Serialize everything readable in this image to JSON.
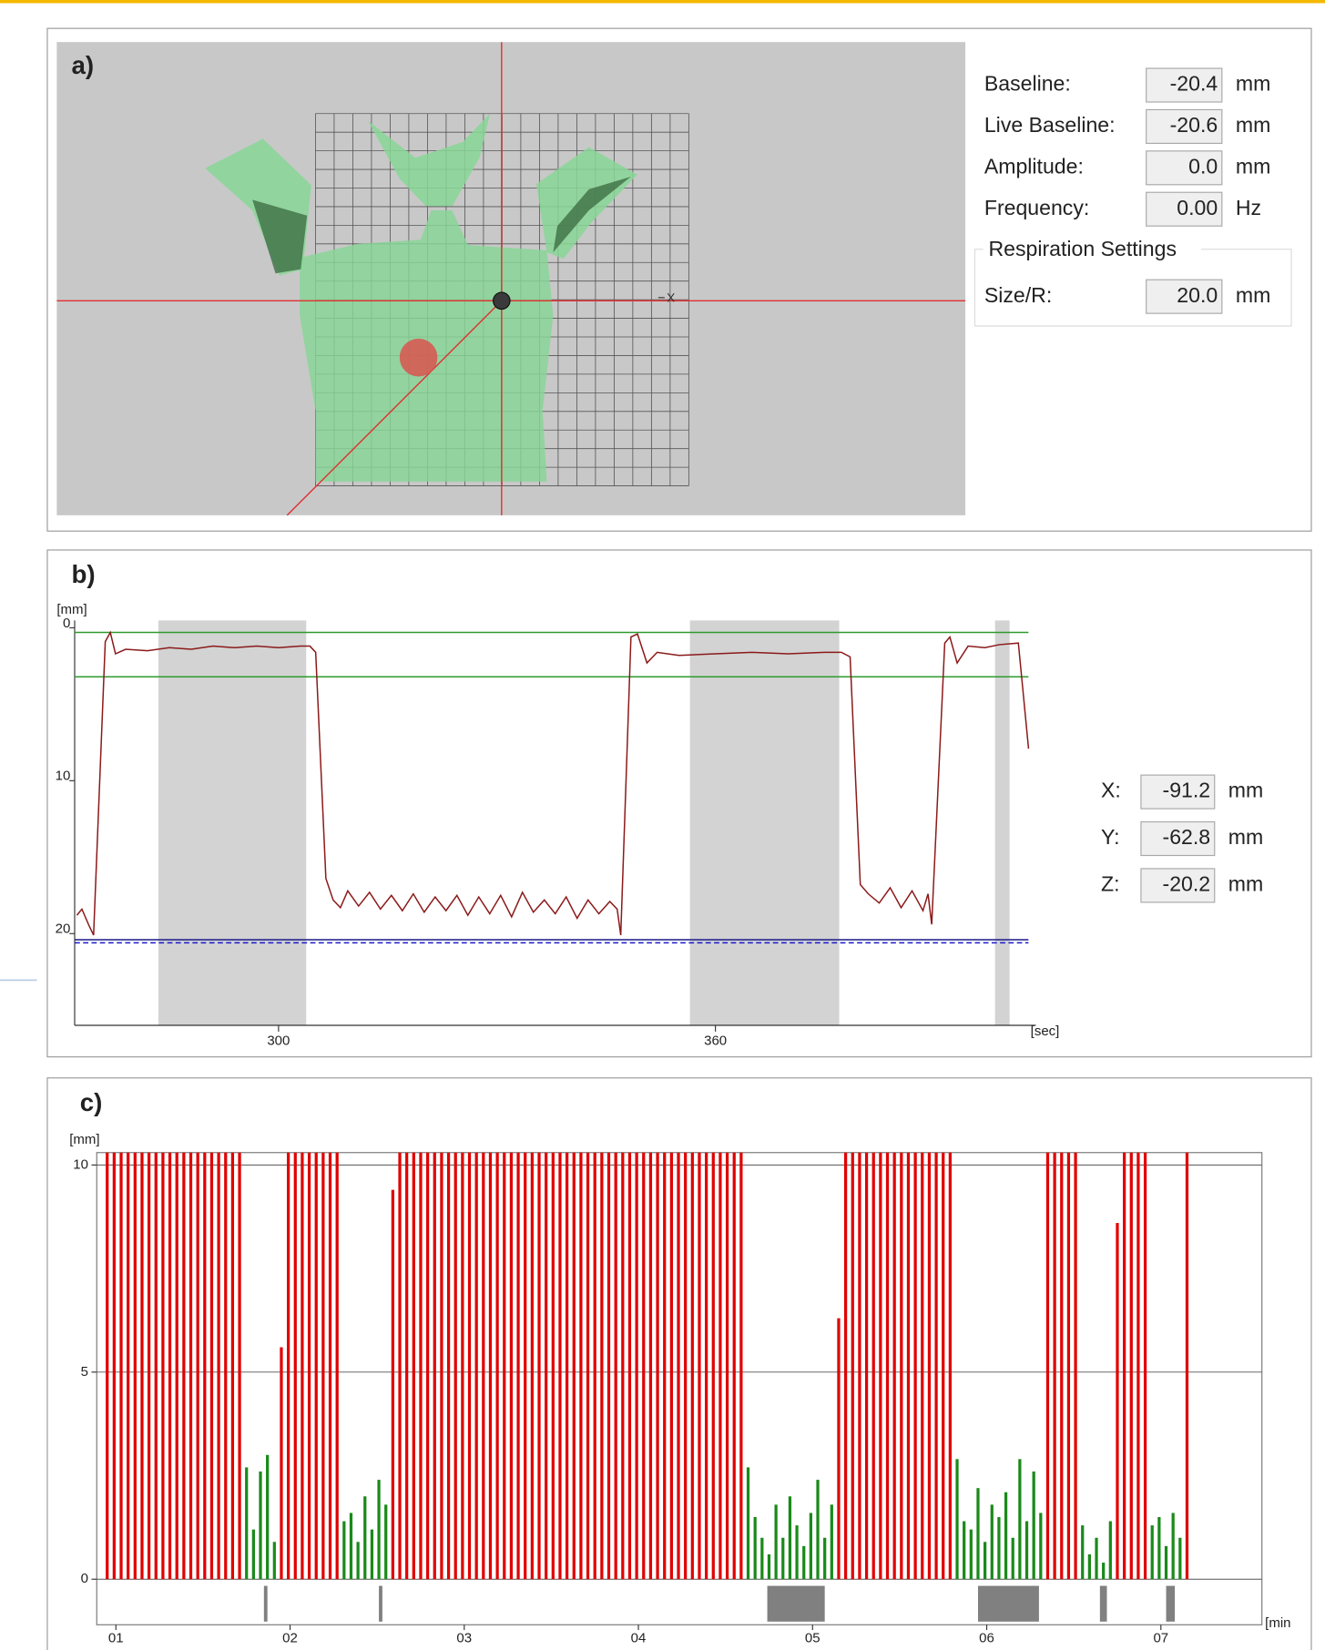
{
  "panel_a": {
    "label": "a)",
    "fields": [
      {
        "label": "Baseline:",
        "value": "-20.4",
        "unit": "mm"
      },
      {
        "label": "Live Baseline:",
        "value": "-20.6",
        "unit": "mm"
      },
      {
        "label": "Amplitude:",
        "value": "0.0",
        "unit": "mm"
      },
      {
        "label": "Frequency:",
        "value": "0.00",
        "unit": "Hz"
      }
    ],
    "group_title": "Respiration Settings",
    "group_fields": [
      {
        "label": "Size/R:",
        "value": "20.0",
        "unit": "mm"
      }
    ]
  },
  "panel_b": {
    "label": "b)",
    "chart": {
      "type": "line",
      "y_label": "[mm]",
      "x_label": "[sec]",
      "color": "#8b1a1a",
      "x": [
        272.3,
        273,
        274,
        274.6,
        276.2,
        276.9,
        277.6,
        279,
        282,
        285,
        288,
        291,
        294,
        297,
        300,
        303,
        304.3,
        305.1,
        306.5,
        307.5,
        308.5,
        309.5,
        311,
        312.5,
        314,
        315.5,
        317,
        318.5,
        320,
        321.5,
        323,
        324.5,
        326,
        327.5,
        329,
        330.5,
        332,
        333.5,
        335,
        336.5,
        338,
        339.5,
        341,
        342.5,
        344,
        345.5,
        346.5,
        347,
        348.4,
        349.3,
        350.6,
        352,
        355,
        360,
        365,
        370,
        375,
        377.3,
        378.5,
        379.9,
        381,
        382.5,
        384,
        385.5,
        387,
        388.5,
        389.2,
        389.7,
        391.5,
        392.2,
        393.2,
        394.7,
        397,
        399,
        401.6,
        403
      ],
      "values": [
        18.8,
        18.4,
        19.5,
        20.1,
        0.9,
        0.3,
        1.7,
        1.4,
        1.5,
        1.3,
        1.4,
        1.2,
        1.3,
        1.2,
        1.3,
        1.2,
        1.2,
        1.6,
        16.4,
        17.8,
        18.3,
        17.2,
        18.2,
        17.3,
        18.4,
        17.5,
        18.5,
        17.4,
        18.6,
        17.6,
        18.5,
        17.5,
        18.8,
        17.6,
        18.7,
        17.5,
        18.9,
        17.3,
        18.6,
        17.8,
        18.7,
        17.6,
        19.0,
        17.8,
        18.7,
        17.9,
        18.4,
        20.1,
        0.6,
        0.4,
        2.3,
        1.6,
        1.8,
        1.7,
        1.6,
        1.7,
        1.6,
        1.6,
        1.9,
        16.8,
        17.4,
        18.0,
        17.0,
        18.3,
        17.2,
        18.5,
        17.4,
        19.4,
        1.0,
        0.6,
        2.3,
        1.2,
        1.3,
        1.1,
        1.0,
        7.9
      ],
      "xlim": [
        272,
        404
      ],
      "ylim": [
        0,
        26
      ],
      "y_inverted": true,
      "xticks": [
        300,
        360
      ],
      "yticks": [
        0,
        10,
        20
      ],
      "gate_windows": [
        [
          283.5,
          303.8
        ],
        [
          356.5,
          377.0
        ],
        [
          398.4,
          400.4
        ]
      ],
      "gate_color": "#d3d3d3",
      "reference_lines": [
        {
          "value": 0.3,
          "color": "#2e9b2e",
          "style": "solid"
        },
        {
          "value": 3.2,
          "color": "#2e9b2e",
          "style": "solid"
        },
        {
          "value": 20.4,
          "color": "#1a1a8a",
          "style": "solid"
        },
        {
          "value": 20.6,
          "color": "#1a1acc",
          "style": "dashed"
        }
      ]
    },
    "fields": [
      {
        "label": "X:",
        "value": "-91.2",
        "unit": "mm"
      },
      {
        "label": "Y:",
        "value": "-62.8",
        "unit": "mm"
      },
      {
        "label": "Z:",
        "value": "-20.2",
        "unit": "mm"
      }
    ]
  },
  "panel_c": {
    "label": "c)",
    "chart": {
      "type": "bar",
      "y_label": "[mm]",
      "x_label": "[min",
      "x": [
        0.95,
        0.99,
        1.03,
        1.07,
        1.11,
        1.15,
        1.19,
        1.23,
        1.27,
        1.31,
        1.35,
        1.39,
        1.43,
        1.47,
        1.51,
        1.55,
        1.59,
        1.63,
        1.67,
        1.71,
        1.75,
        1.79,
        1.83,
        1.87,
        1.91,
        1.95,
        1.99,
        2.03,
        2.07,
        2.11,
        2.15,
        2.19,
        2.23,
        2.27,
        2.31,
        2.35,
        2.39,
        2.43,
        2.47,
        2.51,
        2.55,
        2.59,
        2.63,
        2.67,
        2.71,
        2.75,
        2.79,
        2.83,
        2.87,
        2.91,
        2.95,
        2.99,
        3.03,
        3.07,
        3.11,
        3.15,
        3.19,
        3.23,
        3.27,
        3.31,
        3.35,
        3.39,
        3.43,
        3.47,
        3.51,
        3.55,
        3.59,
        3.63,
        3.67,
        3.71,
        3.75,
        3.79,
        3.83,
        3.87,
        3.91,
        3.95,
        3.99,
        4.03,
        4.07,
        4.11,
        4.15,
        4.19,
        4.23,
        4.27,
        4.31,
        4.35,
        4.39,
        4.43,
        4.47,
        4.51,
        4.55,
        4.59,
        4.63,
        4.67,
        4.71,
        4.75,
        4.79,
        4.83,
        4.87,
        4.91,
        4.95,
        4.99,
        5.03,
        5.07,
        5.11,
        5.15,
        5.19,
        5.23,
        5.27,
        5.31,
        5.35,
        5.39,
        5.43,
        5.47,
        5.51,
        5.55,
        5.59,
        5.63,
        5.67,
        5.71,
        5.75,
        5.79,
        5.83,
        5.87,
        5.91,
        5.95,
        5.99,
        6.03,
        6.07,
        6.11,
        6.15,
        6.19,
        6.23,
        6.27,
        6.31,
        6.35,
        6.39,
        6.43,
        6.47,
        6.51,
        6.55,
        6.59,
        6.63,
        6.67,
        6.71,
        6.75,
        6.79,
        6.83,
        6.87,
        6.91,
        6.95,
        6.99,
        7.03,
        7.07,
        7.11,
        7.15
      ],
      "values": [
        10.3,
        10.3,
        10.3,
        10.3,
        10.3,
        10.3,
        10.3,
        10.3,
        10.3,
        10.3,
        10.3,
        10.3,
        10.3,
        10.3,
        10.3,
        10.3,
        10.3,
        10.3,
        10.3,
        10.3,
        2.7,
        1.2,
        2.6,
        3.0,
        0.9,
        5.6,
        10.3,
        10.3,
        10.3,
        10.3,
        10.3,
        10.3,
        10.3,
        10.3,
        1.4,
        1.6,
        0.9,
        2.0,
        1.2,
        2.4,
        1.8,
        9.4,
        10.3,
        10.3,
        10.3,
        10.3,
        10.3,
        10.3,
        10.3,
        10.3,
        10.3,
        10.3,
        10.3,
        10.3,
        10.3,
        10.3,
        10.3,
        10.3,
        10.3,
        10.3,
        10.3,
        10.3,
        10.3,
        10.3,
        10.3,
        10.3,
        10.3,
        10.3,
        10.3,
        10.3,
        10.3,
        10.3,
        10.3,
        10.3,
        10.3,
        10.3,
        10.3,
        10.3,
        10.3,
        10.3,
        10.3,
        10.3,
        10.3,
        10.3,
        10.3,
        10.3,
        10.3,
        10.3,
        10.3,
        10.3,
        10.3,
        10.3,
        2.7,
        1.5,
        1.0,
        0.6,
        1.8,
        1.0,
        2.0,
        1.3,
        0.8,
        1.6,
        2.4,
        1.0,
        1.8,
        6.3,
        10.3,
        10.3,
        10.3,
        10.3,
        10.3,
        10.3,
        10.3,
        10.3,
        10.3,
        10.3,
        10.3,
        10.3,
        10.3,
        10.3,
        10.3,
        10.3,
        2.9,
        1.4,
        1.2,
        2.2,
        0.9,
        1.8,
        1.5,
        2.1,
        1.0,
        2.9,
        1.4,
        2.6,
        1.6,
        10.3,
        10.3,
        10.3,
        10.3,
        10.3,
        1.3,
        0.6,
        1.0,
        0.4,
        1.4,
        8.6,
        10.3,
        10.3,
        10.3,
        10.3,
        1.3,
        1.5,
        0.8,
        1.6,
        1.0,
        10.3
      ],
      "color_threshold": 5,
      "color_above": "#e00000",
      "color_below": "#1a8a1a",
      "xlim": [
        0.89,
        7.58
      ],
      "ylim": [
        -1.1,
        10.3
      ],
      "xticks": [
        {
          "value": 1,
          "label": "01"
        },
        {
          "value": 2,
          "label": "02"
        },
        {
          "value": 3,
          "label": "03"
        },
        {
          "value": 4,
          "label": "04"
        },
        {
          "value": 5,
          "label": "05"
        },
        {
          "value": 6,
          "label": "06"
        },
        {
          "value": 7,
          "label": "07"
        }
      ],
      "yticks": [
        0,
        5,
        10
      ],
      "beam_off": [
        [
          1.85,
          1.87
        ],
        [
          2.51,
          2.53
        ],
        [
          4.74,
          5.07
        ],
        [
          5.95,
          6.3
        ],
        [
          6.65,
          6.69
        ],
        [
          7.03,
          7.08
        ]
      ],
      "beam_off_color": "#808080"
    }
  }
}
